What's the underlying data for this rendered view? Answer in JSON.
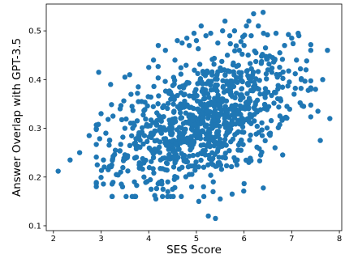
{
  "chart_data": {
    "type": "scatter",
    "xlabel": "SES Score",
    "ylabel": "Answer Overlap with GPT-3.5",
    "xlim": [
      1.85,
      8.05
    ],
    "ylim": [
      0.09,
      0.555
    ],
    "xticks": [
      2,
      3,
      4,
      5,
      6,
      7,
      8
    ],
    "yticks": [
      0.1,
      0.2,
      0.3,
      0.4,
      0.5
    ],
    "ytick_labels": [
      "0.1",
      "0.2",
      "0.3",
      "0.4",
      "0.5"
    ],
    "grid": false,
    "point_color": "#1f77b4",
    "trend": {
      "x_mean": 5.15,
      "x_sd": 0.92,
      "y_at_x_mean": 0.315,
      "slope": 0.034,
      "y_noise_sd": 0.06
    },
    "n_points": 1000,
    "points": [
      [
        2.1,
        0.212
      ],
      [
        2.35,
        0.235
      ],
      [
        2.55,
        0.25
      ],
      [
        2.75,
        0.285
      ],
      [
        2.92,
        0.225
      ],
      [
        2.95,
        0.415
      ],
      [
        3.0,
        0.33
      ],
      [
        3.05,
        0.235
      ],
      [
        3.1,
        0.29
      ],
      [
        3.15,
        0.215
      ],
      [
        3.18,
        0.275
      ],
      [
        3.2,
        0.39
      ],
      [
        3.25,
        0.325
      ],
      [
        3.3,
        0.255
      ],
      [
        3.32,
        0.205
      ],
      [
        3.4,
        0.34
      ],
      [
        3.45,
        0.18
      ],
      [
        3.5,
        0.3
      ],
      [
        3.5,
        0.405
      ],
      [
        3.55,
        0.24
      ],
      [
        3.6,
        0.41
      ],
      [
        3.65,
        0.345
      ],
      [
        3.7,
        0.19
      ],
      [
        3.72,
        0.27
      ],
      [
        3.78,
        0.385
      ],
      [
        3.8,
        0.225
      ],
      [
        3.85,
        0.355
      ],
      [
        3.9,
        0.2
      ],
      [
        3.95,
        0.305
      ],
      [
        4.0,
        0.425
      ],
      [
        4.05,
        0.175
      ],
      [
        4.1,
        0.25
      ],
      [
        4.1,
        0.44
      ],
      [
        4.15,
        0.155
      ],
      [
        4.2,
        0.47
      ],
      [
        4.3,
        0.175
      ],
      [
        4.35,
        0.46
      ],
      [
        4.4,
        0.17
      ],
      [
        4.4,
        0.19
      ],
      [
        4.5,
        0.175
      ],
      [
        4.55,
        0.44
      ],
      [
        4.6,
        0.48
      ],
      [
        4.7,
        0.475
      ],
      [
        4.8,
        0.485
      ],
      [
        4.85,
        0.47
      ],
      [
        4.9,
        0.18
      ],
      [
        4.95,
        0.495
      ],
      [
        5.0,
        0.48
      ],
      [
        5.05,
        0.15
      ],
      [
        5.1,
        0.51
      ],
      [
        5.15,
        0.18
      ],
      [
        5.2,
        0.49
      ],
      [
        5.25,
        0.12
      ],
      [
        5.3,
        0.495
      ],
      [
        5.35,
        0.17
      ],
      [
        5.4,
        0.115
      ],
      [
        5.45,
        0.475
      ],
      [
        5.5,
        0.155
      ],
      [
        5.55,
        0.5
      ],
      [
        5.6,
        0.52
      ],
      [
        5.65,
        0.45
      ],
      [
        5.7,
        0.49
      ],
      [
        5.75,
        0.165
      ],
      [
        5.8,
        0.5
      ],
      [
        5.85,
        0.225
      ],
      [
        5.9,
        0.46
      ],
      [
        6.0,
        0.47
      ],
      [
        6.05,
        0.51
      ],
      [
        6.1,
        0.23
      ],
      [
        6.1,
        0.52
      ],
      [
        6.15,
        0.49
      ],
      [
        6.2,
        0.535
      ],
      [
        6.25,
        0.455
      ],
      [
        6.3,
        0.51
      ],
      [
        6.35,
        0.245
      ],
      [
        6.4,
        0.538
      ],
      [
        6.45,
        0.465
      ],
      [
        6.5,
        0.42
      ],
      [
        6.55,
        0.29
      ],
      [
        6.6,
        0.445
      ],
      [
        6.65,
        0.26
      ],
      [
        6.7,
        0.405
      ],
      [
        6.75,
        0.455
      ],
      [
        6.8,
        0.32
      ],
      [
        6.85,
        0.47
      ],
      [
        6.9,
        0.345
      ],
      [
        6.95,
        0.395
      ],
      [
        7.0,
        0.485
      ],
      [
        7.05,
        0.37
      ],
      [
        7.1,
        0.44
      ],
      [
        7.15,
        0.49
      ],
      [
        7.2,
        0.4
      ],
      [
        7.25,
        0.345
      ],
      [
        7.3,
        0.42
      ],
      [
        7.4,
        0.46
      ],
      [
        7.5,
        0.38
      ],
      [
        7.55,
        0.335
      ],
      [
        7.6,
        0.275
      ],
      [
        7.65,
        0.4
      ],
      [
        7.75,
        0.46
      ],
      [
        7.8,
        0.32
      ]
    ]
  }
}
